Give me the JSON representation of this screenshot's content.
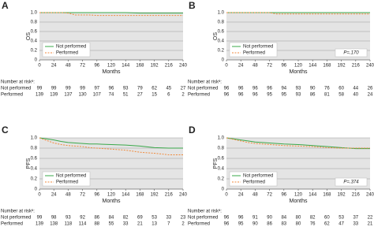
{
  "chart_data": [
    {
      "type": "line",
      "panel_label": "A",
      "ylabel": "OS",
      "xlabel": "Months",
      "legend": "lower left",
      "x": [
        0,
        12,
        24,
        36,
        48,
        60,
        72,
        84,
        96,
        120,
        144,
        168,
        192,
        216,
        240
      ],
      "xlim": [
        0,
        240
      ],
      "xticks": [
        0,
        24,
        48,
        72,
        96,
        120,
        144,
        168,
        192,
        216,
        240
      ],
      "ylim": [
        0,
        1
      ],
      "yticks": [
        0,
        0.2,
        0.4,
        0.6,
        0.8,
        {
          "value": 1,
          "label": "1.0"
        }
      ],
      "grid": true,
      "series": [
        {
          "name": "Not performed",
          "color": "#3aa84a",
          "dash": false,
          "values": [
            1,
            1,
            1,
            1,
            1,
            1,
            1,
            1,
            1,
            1,
            1,
            0.99,
            0.99,
            0.99,
            0.99
          ]
        },
        {
          "name": "Performed",
          "color": "#f08a3c",
          "dash": true,
          "values": [
            1,
            1,
            1,
            1,
            0.99,
            0.95,
            0.95,
            0.95,
            0.94,
            0.94,
            0.94,
            0.94,
            0.94,
            0.94,
            0.94
          ]
        }
      ],
      "risk_header": "Number at riskᵃ:",
      "risk_rows": [
        {
          "name": "Not performed",
          "color": "#3aa84a",
          "values": [
            99,
            99,
            99,
            99,
            97,
            96,
            93,
            79,
            62,
            45,
            27
          ]
        },
        {
          "name": "Performed",
          "color": "#f08a3c",
          "values": [
            139,
            139,
            137,
            130,
            107,
            74,
            51,
            27,
            15,
            6,
            2
          ]
        }
      ]
    },
    {
      "type": "line",
      "panel_label": "B",
      "ylabel": "OS",
      "xlabel": "Months",
      "legend": "upper right",
      "annotation": "P=.170",
      "x": [
        0,
        12,
        24,
        36,
        48,
        60,
        72,
        84,
        96,
        120,
        144,
        168,
        192,
        216,
        240
      ],
      "xlim": [
        0,
        240
      ],
      "xticks": [
        0,
        24,
        48,
        72,
        96,
        120,
        144,
        168,
        192,
        216,
        240
      ],
      "ylim": [
        0,
        1
      ],
      "yticks": [
        0,
        0.2,
        0.4,
        0.6,
        0.8,
        {
          "value": 1,
          "label": "1.0"
        }
      ],
      "grid": true,
      "series": [
        {
          "name": "Not performed",
          "color": "#3aa84a",
          "dash": false,
          "values": [
            1,
            1,
            1,
            1,
            1,
            1,
            1,
            1,
            1,
            1,
            1,
            1,
            1,
            1,
            1
          ]
        },
        {
          "name": "Performed",
          "color": "#f08a3c",
          "dash": true,
          "values": [
            1,
            1,
            1,
            1,
            1,
            1,
            1,
            0.97,
            0.97,
            0.97,
            0.97,
            0.97,
            0.97,
            0.97,
            0.97
          ]
        }
      ],
      "risk_header": "Number at riskᵃ:",
      "risk_rows": [
        {
          "name": "Not performed",
          "color": "#3aa84a",
          "values": [
            96,
            96,
            96,
            96,
            94,
            93,
            90,
            76,
            60,
            44,
            26
          ]
        },
        {
          "name": "Performed",
          "color": "#f08a3c",
          "values": [
            96,
            96,
            96,
            95,
            95,
            93,
            86,
            81,
            58,
            40,
            24
          ]
        }
      ]
    },
    {
      "type": "line",
      "panel_label": "C",
      "ylabel": "PFS",
      "xlabel": "Months",
      "legend": "lower left",
      "x": [
        0,
        12,
        24,
        36,
        48,
        60,
        72,
        84,
        96,
        120,
        144,
        168,
        192,
        216,
        240
      ],
      "xlim": [
        0,
        240
      ],
      "xticks": [
        0,
        24,
        48,
        72,
        96,
        120,
        144,
        168,
        192,
        216,
        240
      ],
      "ylim": [
        0,
        1
      ],
      "yticks": [
        0,
        0.2,
        0.4,
        0.6,
        0.8,
        {
          "value": 1,
          "label": "1.0"
        }
      ],
      "grid": true,
      "series": [
        {
          "name": "Not performed",
          "color": "#3aa84a",
          "dash": false,
          "values": [
            1,
            0.98,
            0.96,
            0.93,
            0.91,
            0.9,
            0.89,
            0.88,
            0.88,
            0.87,
            0.86,
            0.84,
            0.81,
            0.8,
            0.8
          ]
        },
        {
          "name": "Performed",
          "color": "#f08a3c",
          "dash": true,
          "values": [
            1,
            0.95,
            0.9,
            0.87,
            0.85,
            0.84,
            0.83,
            0.81,
            0.8,
            0.78,
            0.76,
            0.72,
            0.7,
            0.67,
            0.67
          ]
        }
      ],
      "risk_header": "Number at riskᵃ:",
      "risk_rows": [
        {
          "name": "Not performed",
          "color": "#3aa84a",
          "values": [
            99,
            98,
            93,
            92,
            86,
            84,
            82,
            69,
            53,
            33,
            23
          ]
        },
        {
          "name": "Performed",
          "color": "#f08a3c",
          "values": [
            139,
            138,
            118,
            114,
            88,
            55,
            33,
            21,
            13,
            7,
            2
          ]
        }
      ]
    },
    {
      "type": "line",
      "panel_label": "D",
      "ylabel": "PFS",
      "xlabel": "Months",
      "legend": "upper right",
      "annotation": "P=.374",
      "x": [
        0,
        12,
        24,
        36,
        48,
        60,
        72,
        84,
        96,
        120,
        144,
        168,
        192,
        216,
        240
      ],
      "xlim": [
        0,
        240
      ],
      "xticks": [
        0,
        24,
        48,
        72,
        96,
        120,
        144,
        168,
        192,
        216,
        240
      ],
      "ylim": [
        0,
        1
      ],
      "yticks": [
        0,
        0.2,
        0.4,
        0.6,
        0.8,
        {
          "value": 1,
          "label": "1.0"
        }
      ],
      "grid": true,
      "series": [
        {
          "name": "Not performed",
          "color": "#3aa84a",
          "dash": false,
          "values": [
            1,
            0.98,
            0.96,
            0.94,
            0.92,
            0.91,
            0.9,
            0.89,
            0.88,
            0.87,
            0.85,
            0.83,
            0.81,
            0.79,
            0.79
          ]
        },
        {
          "name": "Performed",
          "color": "#f08a3c",
          "dash": true,
          "values": [
            1,
            0.97,
            0.94,
            0.91,
            0.89,
            0.88,
            0.87,
            0.86,
            0.85,
            0.84,
            0.83,
            0.81,
            0.8,
            0.8,
            0.8
          ]
        }
      ],
      "risk_header": "Number at riskᵃ:",
      "risk_rows": [
        {
          "name": "Not performed",
          "color": "#3aa84a",
          "values": [
            96,
            96,
            91,
            90,
            84,
            80,
            82,
            60,
            53,
            37,
            22
          ]
        },
        {
          "name": "Performed",
          "color": "#f08a3c",
          "values": [
            96,
            95,
            90,
            86,
            83,
            80,
            76,
            62,
            47,
            33,
            21
          ]
        }
      ]
    }
  ]
}
